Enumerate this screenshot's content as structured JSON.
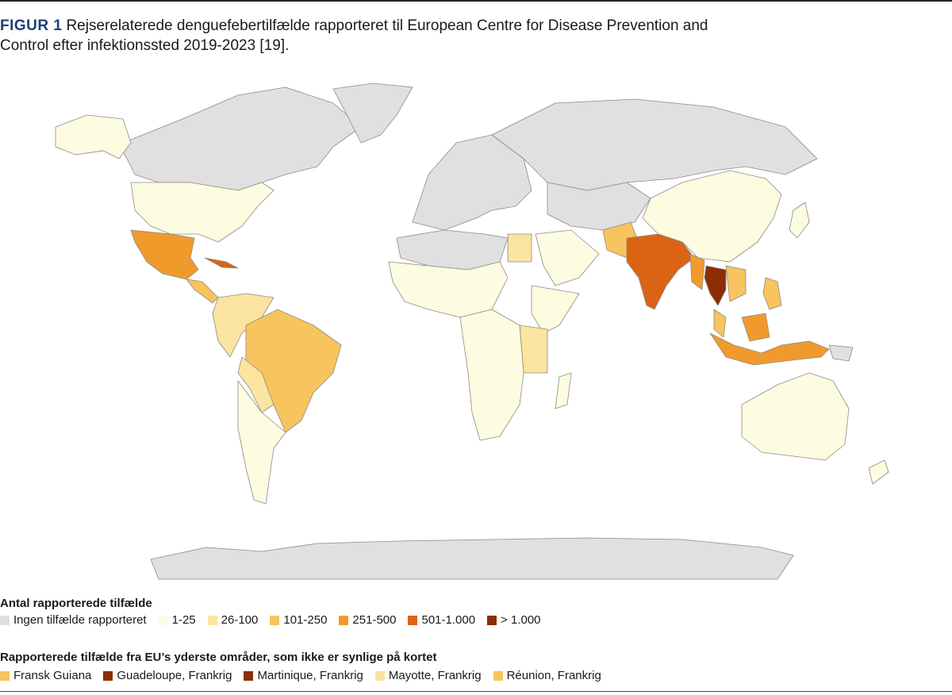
{
  "figure": {
    "label": "FIGUR 1",
    "caption": "Rejserelaterede denguefebertilfælde rapporteret til European Centre for Disease Prevention and Control efter infektionssted 2019-2023 [19]."
  },
  "colors": {
    "none": "#e0e0e0",
    "c1_25": "#fefce0",
    "c26_100": "#fbe3a0",
    "c101_250": "#f7c45e",
    "c251_500": "#f19a2c",
    "c501_1000": "#da6414",
    "c_gt1000": "#8c2d04",
    "border": "#8a8a8a"
  },
  "legend": {
    "title": "Antal rapporterede tilfælde",
    "items": [
      {
        "label": "Ingen tilfælde rapporteret",
        "color": "#e0e0e0"
      },
      {
        "label": "1-25",
        "color": "#fefce0"
      },
      {
        "label": "26-100",
        "color": "#fbe3a0"
      },
      {
        "label": "101-250",
        "color": "#f7c45e"
      },
      {
        "label": "251-500",
        "color": "#f19a2c"
      },
      {
        "label": "501-1.000",
        "color": "#da6414"
      },
      {
        "label": "> 1.000",
        "color": "#8c2d04"
      }
    ]
  },
  "regions": {
    "title": "Rapporterede tilfælde fra EU’s yderste områder, som ikke er synlige på kortet",
    "items": [
      {
        "label": "Fransk Guiana",
        "color": "#f7c45e"
      },
      {
        "label": "Guadeloupe, Frankrig",
        "color": "#8c2d04"
      },
      {
        "label": "Martinique, Frankrig",
        "color": "#8c2d04"
      },
      {
        "label": "Mayotte, Frankrig",
        "color": "#fbe3a0"
      },
      {
        "label": "Réunion, Frankrig",
        "color": "#f7c45e"
      }
    ]
  },
  "map_regions": [
    {
      "name": "canada-greenland-russia",
      "category": "none"
    },
    {
      "name": "alaska",
      "category": "1-25"
    },
    {
      "name": "usa",
      "category": "1-25"
    },
    {
      "name": "mexico",
      "category": "251-500"
    },
    {
      "name": "cuba",
      "category": "501-1.000"
    },
    {
      "name": "brazil",
      "category": "101-250"
    },
    {
      "name": "india",
      "category": "501-1.000"
    },
    {
      "name": "thailand",
      "category": "> 1.000"
    },
    {
      "name": "indonesia",
      "category": "251-500"
    },
    {
      "name": "china",
      "category": "1-25"
    },
    {
      "name": "australia",
      "category": "1-25"
    },
    {
      "name": "antarctica",
      "category": "none"
    }
  ]
}
